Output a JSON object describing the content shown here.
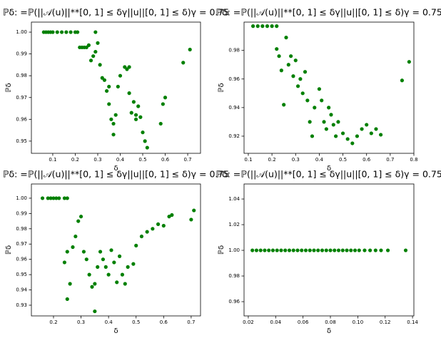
{
  "chart_data": [
    {
      "type": "scatter",
      "title": "ℙδ: =ℙ(||𝒜(u)||**[0, 1] ≤ δγ||u||[0, 1] ≤ δ)γ = 0.75",
      "xlabel": "δ",
      "ylabel": "ℙδ",
      "color": "#008000",
      "x": [
        0.06,
        0.07,
        0.08,
        0.09,
        0.1,
        0.12,
        0.14,
        0.16,
        0.18,
        0.2,
        0.21,
        0.29,
        0.22,
        0.23,
        0.24,
        0.25,
        0.26,
        0.27,
        0.28,
        0.29,
        0.3,
        0.31,
        0.32,
        0.33,
        0.34,
        0.35,
        0.35,
        0.36,
        0.37,
        0.37,
        0.38,
        0.39,
        0.4,
        0.42,
        0.43,
        0.44,
        0.44,
        0.45,
        0.46,
        0.47,
        0.47,
        0.48,
        0.49,
        0.5,
        0.51,
        0.52,
        0.58,
        0.59,
        0.6,
        0.68,
        0.71
      ],
      "values": [
        1.0,
        1.0,
        1.0,
        1.0,
        1.0,
        1.0,
        1.0,
        1.0,
        1.0,
        1.0,
        1.0,
        1.0,
        0.993,
        0.993,
        0.993,
        0.993,
        0.994,
        0.987,
        0.989,
        0.991,
        0.995,
        0.985,
        0.979,
        0.978,
        0.973,
        0.967,
        0.975,
        0.96,
        0.953,
        0.958,
        0.962,
        0.975,
        0.98,
        0.984,
        0.983,
        0.972,
        0.984,
        0.963,
        0.968,
        0.96,
        0.962,
        0.966,
        0.961,
        0.954,
        0.95,
        0.947,
        0.958,
        0.967,
        0.97,
        0.986,
        0.992
      ],
      "xlim": [
        0.005,
        0.757
      ],
      "ylim": [
        0.9444,
        1.0046
      ],
      "xticks": [
        0.1,
        0.2,
        0.3,
        0.4,
        0.5,
        0.6,
        0.7
      ],
      "yticks": [
        0.95,
        0.96,
        0.97,
        0.98,
        0.99,
        {
          "value": 1,
          "label": "1.00"
        }
      ]
    },
    {
      "type": "scatter",
      "title": "ℙδ: =ℙ(||𝒜(u)||**[0, 1] ≤ δγ||u||[0, 1] ≤ δ)γ = 0.75",
      "xlabel": "δ",
      "ylabel": "ℙδ",
      "color": "#008000",
      "x": [
        0.12,
        0.14,
        0.16,
        0.18,
        0.2,
        0.22,
        0.22,
        0.23,
        0.24,
        0.25,
        0.26,
        0.27,
        0.28,
        0.29,
        0.3,
        0.31,
        0.32,
        0.33,
        0.34,
        0.35,
        0.36,
        0.37,
        0.38,
        0.4,
        0.41,
        0.42,
        0.43,
        0.44,
        0.45,
        0.46,
        0.47,
        0.48,
        0.5,
        0.52,
        0.54,
        0.56,
        0.58,
        0.6,
        0.62,
        0.64,
        0.66,
        0.75,
        0.78
      ],
      "values": [
        0.997,
        0.997,
        0.997,
        0.997,
        0.997,
        0.997,
        0.981,
        0.976,
        0.966,
        0.942,
        0.989,
        0.97,
        0.976,
        0.962,
        0.973,
        0.955,
        0.96,
        0.95,
        0.965,
        0.945,
        0.93,
        0.92,
        0.94,
        0.953,
        0.945,
        0.93,
        0.925,
        0.94,
        0.935,
        0.928,
        0.92,
        0.93,
        0.922,
        0.918,
        0.915,
        0.92,
        0.925,
        0.928,
        0.922,
        0.925,
        0.921,
        0.959,
        0.972
      ],
      "xlim": [
        0.082,
        0.8
      ],
      "ylim": [
        0.908,
        0.9998
      ],
      "xticks": [
        0.1,
        0.2,
        0.3,
        0.4,
        0.5,
        0.6,
        0.7,
        0.8
      ],
      "yticks": [
        0.92,
        0.94,
        0.96,
        0.98
      ]
    },
    {
      "type": "scatter",
      "title": "ℙδ: =ℙ(||𝒜(u)||**[0, 1] ≤ δγ||u||[0, 1] ≤ δ)γ = 0.75",
      "xlabel": "δ",
      "ylabel": "ℙδ",
      "color": "#008000",
      "x": [
        0.16,
        0.18,
        0.19,
        0.2,
        0.21,
        0.22,
        0.24,
        0.25,
        0.24,
        0.25,
        0.25,
        0.26,
        0.27,
        0.28,
        0.29,
        0.3,
        0.31,
        0.32,
        0.33,
        0.34,
        0.35,
        0.35,
        0.36,
        0.37,
        0.38,
        0.39,
        0.4,
        0.41,
        0.42,
        0.43,
        0.44,
        0.45,
        0.46,
        0.47,
        0.49,
        0.5,
        0.52,
        0.54,
        0.56,
        0.58,
        0.6,
        0.62,
        0.63,
        0.7,
        0.71
      ],
      "values": [
        1.0,
        1.0,
        1.0,
        1.0,
        1.0,
        1.0,
        1.0,
        1.0,
        0.958,
        0.965,
        0.934,
        0.944,
        0.968,
        0.975,
        0.985,
        0.988,
        0.965,
        0.96,
        0.95,
        0.942,
        0.926,
        0.944,
        0.955,
        0.965,
        0.96,
        0.955,
        0.95,
        0.966,
        0.958,
        0.945,
        0.962,
        0.95,
        0.944,
        0.955,
        0.957,
        0.969,
        0.975,
        0.978,
        0.98,
        0.983,
        0.982,
        0.988,
        0.989,
        0.986,
        0.992
      ],
      "xlim": [
        0.1197,
        0.734
      ],
      "ylim": [
        0.923,
        1.0093
      ],
      "xticks": [
        0.2,
        0.3,
        0.4,
        0.5,
        0.6,
        0.7
      ],
      "yticks": [
        0.93,
        0.94,
        0.95,
        0.96,
        0.97,
        0.98,
        0.99,
        {
          "value": 1,
          "label": "1.00"
        }
      ]
    },
    {
      "type": "scatter",
      "title": "ℙδ: =ℙ(||𝒜(u)||**[0, 1] ≤ δγ||u||[0, 1] ≤ δ)γ = 0.75",
      "xlabel": "δ",
      "ylabel": "ℙδ",
      "color": "#008000",
      "x": [
        0.023,
        0.026,
        0.029,
        0.032,
        0.035,
        0.038,
        0.041,
        0.044,
        0.047,
        0.05,
        0.053,
        0.056,
        0.059,
        0.062,
        0.065,
        0.068,
        0.071,
        0.074,
        0.077,
        0.08,
        0.083,
        0.086,
        0.089,
        0.092,
        0.095,
        0.098,
        0.101,
        0.105,
        0.109,
        0.113,
        0.117,
        0.122,
        0.135
      ],
      "values": [
        1.0,
        1.0,
        1.0,
        1.0,
        1.0,
        1.0,
        1.0,
        1.0,
        1.0,
        1.0,
        1.0,
        1.0,
        1.0,
        1.0,
        1.0,
        1.0,
        1.0,
        1.0,
        1.0,
        1.0,
        1.0,
        1.0,
        1.0,
        1.0,
        1.0,
        1.0,
        1.0,
        1.0,
        1.0,
        1.0,
        1.0,
        1.0,
        1.0
      ],
      "xlim": [
        0.0169,
        0.141
      ],
      "ylim": [
        0.9489,
        1.0517
      ],
      "xticks": [
        0.02,
        0.04,
        0.06,
        0.08,
        {
          "value": 0.1,
          "label": "0.10"
        },
        0.12,
        0.14
      ],
      "yticks": [
        0.96,
        0.98,
        {
          "value": 1,
          "label": "1.00"
        },
        1.02,
        1.04
      ]
    }
  ]
}
